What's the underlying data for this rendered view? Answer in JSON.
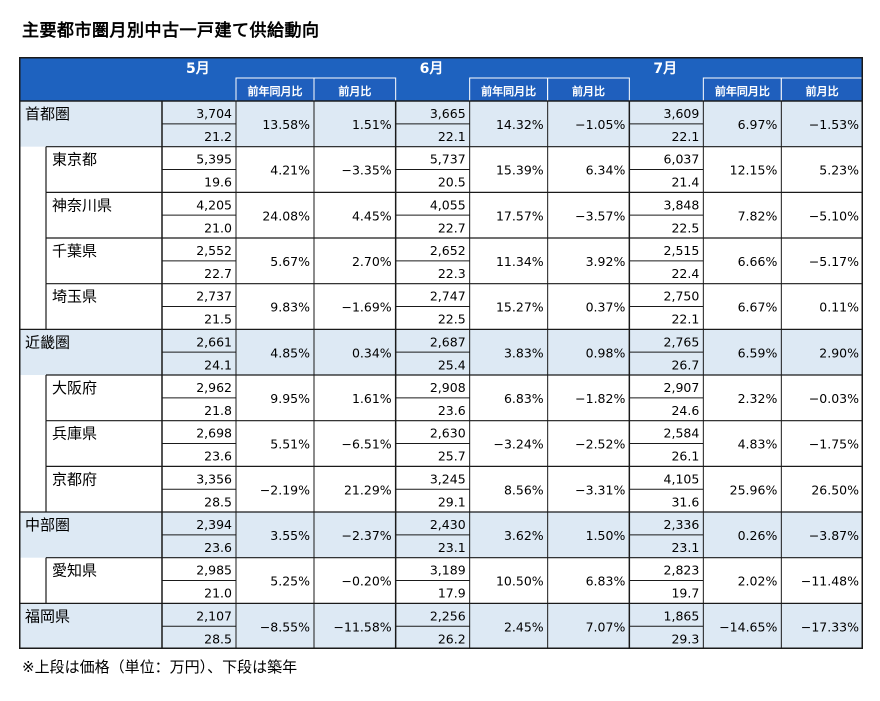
{
  "title": "主要都市圏月別中古一戸建て供給動向",
  "note": "※上段は価格（単位：万円）、下段は築年",
  "colors": {
    "header": "#1e62bf",
    "header_sub": "#1f5fbd",
    "band": "#dde9f4",
    "grid": "#1a1a1a"
  },
  "months": [
    {
      "label": "5月",
      "yoy_label": "前年同月比",
      "mom_label": "前月比"
    },
    {
      "label": "6月",
      "yoy_label": "前年同月比",
      "mom_label": "前月比"
    },
    {
      "label": "7月",
      "yoy_label": "前年同月比",
      "mom_label": "前月比"
    }
  ],
  "rows": [
    {
      "name": "首都圏",
      "level": 0,
      "data": [
        {
          "price": "3,704",
          "age": "21.2",
          "yoy": "13.58%",
          "mom": "1.51%"
        },
        {
          "price": "3,665",
          "age": "22.1",
          "yoy": "14.32%",
          "mom": "−1.05%"
        },
        {
          "price": "3,609",
          "age": "22.1",
          "yoy": "6.97%",
          "mom": "−1.53%"
        }
      ]
    },
    {
      "name": "東京都",
      "level": 1,
      "data": [
        {
          "price": "5,395",
          "age": "19.6",
          "yoy": "4.21%",
          "mom": "−3.35%"
        },
        {
          "price": "5,737",
          "age": "20.5",
          "yoy": "15.39%",
          "mom": "6.34%"
        },
        {
          "price": "6,037",
          "age": "21.4",
          "yoy": "12.15%",
          "mom": "5.23%"
        }
      ]
    },
    {
      "name": "神奈川県",
      "level": 1,
      "data": [
        {
          "price": "4,205",
          "age": "21.0",
          "yoy": "24.08%",
          "mom": "4.45%"
        },
        {
          "price": "4,055",
          "age": "22.7",
          "yoy": "17.57%",
          "mom": "−3.57%"
        },
        {
          "price": "3,848",
          "age": "22.5",
          "yoy": "7.82%",
          "mom": "−5.10%"
        }
      ]
    },
    {
      "name": "千葉県",
      "level": 1,
      "data": [
        {
          "price": "2,552",
          "age": "22.7",
          "yoy": "5.67%",
          "mom": "2.70%"
        },
        {
          "price": "2,652",
          "age": "22.3",
          "yoy": "11.34%",
          "mom": "3.92%"
        },
        {
          "price": "2,515",
          "age": "22.4",
          "yoy": "6.66%",
          "mom": "−5.17%"
        }
      ]
    },
    {
      "name": "埼玉県",
      "level": 1,
      "data": [
        {
          "price": "2,737",
          "age": "21.5",
          "yoy": "9.83%",
          "mom": "−1.69%"
        },
        {
          "price": "2,747",
          "age": "22.5",
          "yoy": "15.27%",
          "mom": "0.37%"
        },
        {
          "price": "2,750",
          "age": "22.1",
          "yoy": "6.67%",
          "mom": "0.11%"
        }
      ]
    },
    {
      "name": "近畿圏",
      "level": 0,
      "data": [
        {
          "price": "2,661",
          "age": "24.1",
          "yoy": "4.85%",
          "mom": "0.34%"
        },
        {
          "price": "2,687",
          "age": "25.4",
          "yoy": "3.83%",
          "mom": "0.98%"
        },
        {
          "price": "2,765",
          "age": "26.7",
          "yoy": "6.59%",
          "mom": "2.90%"
        }
      ]
    },
    {
      "name": "大阪府",
      "level": 1,
      "data": [
        {
          "price": "2,962",
          "age": "21.8",
          "yoy": "9.95%",
          "mom": "1.61%"
        },
        {
          "price": "2,908",
          "age": "23.6",
          "yoy": "6.83%",
          "mom": "−1.82%"
        },
        {
          "price": "2,907",
          "age": "24.6",
          "yoy": "2.32%",
          "mom": "−0.03%"
        }
      ]
    },
    {
      "name": "兵庫県",
      "level": 1,
      "data": [
        {
          "price": "2,698",
          "age": "23.6",
          "yoy": "5.51%",
          "mom": "−6.51%"
        },
        {
          "price": "2,630",
          "age": "25.7",
          "yoy": "−3.24%",
          "mom": "−2.52%"
        },
        {
          "price": "2,584",
          "age": "26.1",
          "yoy": "4.83%",
          "mom": "−1.75%"
        }
      ]
    },
    {
      "name": "京都府",
      "level": 1,
      "data": [
        {
          "price": "3,356",
          "age": "28.5",
          "yoy": "−2.19%",
          "mom": "21.29%"
        },
        {
          "price": "3,245",
          "age": "29.1",
          "yoy": "8.56%",
          "mom": "−3.31%"
        },
        {
          "price": "4,105",
          "age": "31.6",
          "yoy": "25.96%",
          "mom": "26.50%"
        }
      ]
    },
    {
      "name": "中部圏",
      "level": 0,
      "data": [
        {
          "price": "2,394",
          "age": "23.6",
          "yoy": "3.55%",
          "mom": "−2.37%"
        },
        {
          "price": "2,430",
          "age": "23.1",
          "yoy": "3.62%",
          "mom": "1.50%"
        },
        {
          "price": "2,336",
          "age": "23.1",
          "yoy": "0.26%",
          "mom": "−3.87%"
        }
      ]
    },
    {
      "name": "愛知県",
      "level": 1,
      "data": [
        {
          "price": "2,985",
          "age": "21.0",
          "yoy": "5.25%",
          "mom": "−0.20%"
        },
        {
          "price": "3,189",
          "age": "17.9",
          "yoy": "10.50%",
          "mom": "6.83%"
        },
        {
          "price": "2,823",
          "age": "19.7",
          "yoy": "2.02%",
          "mom": "−11.48%"
        }
      ]
    },
    {
      "name": "福岡県",
      "level": 0,
      "data": [
        {
          "price": "2,107",
          "age": "28.5",
          "yoy": "−8.55%",
          "mom": "−11.58%"
        },
        {
          "price": "2,256",
          "age": "26.2",
          "yoy": "2.45%",
          "mom": "7.07%"
        },
        {
          "price": "1,865",
          "age": "29.3",
          "yoy": "−14.65%",
          "mom": "−17.33%"
        }
      ]
    }
  ]
}
